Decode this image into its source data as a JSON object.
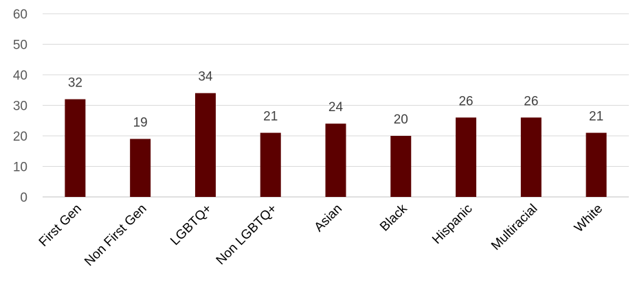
{
  "chart_data": {
    "type": "bar",
    "categories": [
      "First Gen",
      "Non First Gen",
      "LGBTQ+",
      "Non LGBTQ+",
      "Asian",
      "Black",
      "Hispanic",
      "Multiracial",
      "White"
    ],
    "values": [
      32,
      19,
      34,
      21,
      24,
      20,
      26,
      26,
      21
    ],
    "ylim": [
      0,
      60
    ],
    "yticks": [
      "0",
      "10",
      "20",
      "30",
      "40",
      "50",
      "60"
    ],
    "grid": true,
    "bar_color": "#5c0000",
    "grid_color": "#d9d9d9"
  }
}
